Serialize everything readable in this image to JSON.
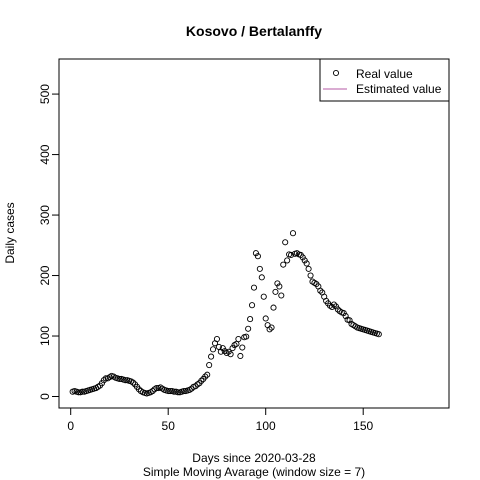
{
  "chart_data": {
    "type": "scatter",
    "title": "Kosovo / Bertalanffy",
    "xlabel": "Days since 2020-03-28",
    "subtitle": "Simple Moving Avarage (window size = 7)",
    "ylabel": "Daily cases",
    "xlim": [
      -6,
      194
    ],
    "ylim": [
      -19,
      558
    ],
    "x_ticks": [
      0,
      50,
      100,
      150
    ],
    "y_ticks": [
      0,
      100,
      200,
      300,
      400,
      500
    ],
    "legend": {
      "position": "top-right",
      "entries": [
        {
          "label": "Real value",
          "symbol": "circle"
        },
        {
          "label": "Estimated value",
          "symbol": "line",
          "color": "#b55aa6"
        }
      ]
    },
    "series": [
      {
        "name": "Real value",
        "x": [
          1,
          2,
          3,
          4,
          5,
          6,
          7,
          8,
          9,
          10,
          11,
          12,
          13,
          14,
          15,
          16,
          17,
          18,
          19,
          20,
          21,
          22,
          23,
          24,
          25,
          26,
          27,
          28,
          29,
          30,
          31,
          32,
          33,
          34,
          35,
          36,
          37,
          38,
          39,
          40,
          41,
          42,
          43,
          44,
          45,
          46,
          47,
          48,
          49,
          50,
          51,
          52,
          53,
          54,
          55,
          56,
          57,
          58,
          59,
          60,
          61,
          62,
          63,
          64,
          65,
          66,
          67,
          68,
          69,
          70,
          71,
          72,
          73,
          74,
          75,
          76,
          77,
          78,
          79,
          80,
          81,
          82,
          83,
          84,
          85,
          86,
          87,
          88,
          89,
          90,
          91,
          92,
          93,
          94,
          95,
          96,
          97,
          98,
          99,
          100,
          101,
          102,
          103,
          104,
          105,
          106,
          107,
          108,
          109,
          110,
          111,
          112,
          113,
          114,
          115,
          116,
          117,
          118,
          119,
          120,
          121,
          122,
          123,
          124,
          125,
          126,
          127,
          128,
          129,
          130,
          131,
          132,
          133,
          134,
          135,
          136,
          137,
          138,
          139,
          140,
          141,
          142,
          143,
          144,
          145,
          146,
          147,
          148,
          149,
          150,
          151,
          152,
          153,
          154,
          155,
          156,
          157,
          158
        ],
        "y": [
          8,
          9,
          8,
          7,
          7,
          8,
          8,
          9,
          10,
          11,
          12,
          13,
          14,
          16,
          18,
          22,
          27,
          30,
          30,
          32,
          34,
          33,
          31,
          30,
          29,
          29,
          28,
          27,
          27,
          26,
          25,
          23,
          20,
          16,
          12,
          9,
          7,
          6,
          5,
          6,
          7,
          9,
          12,
          14,
          14,
          15,
          13,
          11,
          10,
          9,
          9,
          9,
          8,
          8,
          7,
          7,
          8,
          9,
          9,
          10,
          11,
          13,
          16,
          17,
          20,
          22,
          26,
          29,
          33,
          36,
          52,
          66,
          78,
          88,
          95,
          82,
          74,
          80,
          75,
          72,
          74,
          70,
          80,
          85,
          87,
          95,
          67,
          81,
          98,
          99,
          112,
          128,
          151,
          180,
          237,
          232,
          211,
          197,
          165,
          129,
          118,
          111,
          114,
          147,
          173,
          187,
          182,
          167,
          218,
          255,
          225,
          235,
          234,
          270,
          236,
          237,
          235,
          234,
          230,
          225,
          220,
          211,
          200,
          190,
          188,
          186,
          182,
          175,
          172,
          165,
          158,
          154,
          150,
          148,
          152,
          149,
          144,
          141,
          139,
          138,
          133,
          127,
          126,
          120,
          118,
          116,
          114,
          113,
          112,
          111,
          110,
          109,
          108,
          107,
          106,
          105,
          104,
          103
        ]
      }
    ]
  }
}
